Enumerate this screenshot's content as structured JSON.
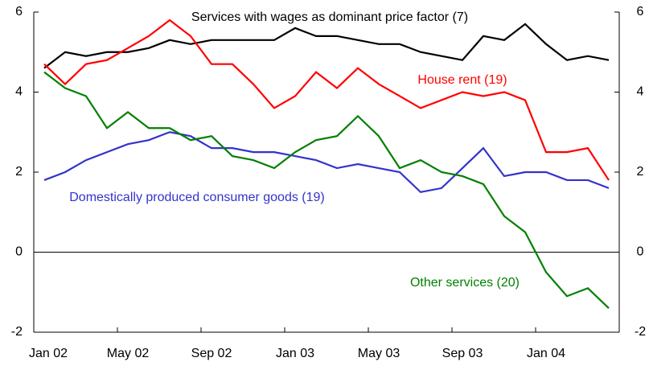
{
  "chart_data": {
    "type": "line",
    "categories": [
      "Jan 02",
      null,
      null,
      null,
      "May 02",
      null,
      null,
      null,
      "Sep 02",
      null,
      null,
      null,
      "Jan 03",
      null,
      null,
      null,
      "May 03",
      null,
      null,
      null,
      "Sep 03",
      null,
      null,
      null,
      "Jan 04",
      null,
      null,
      null
    ],
    "series": [
      {
        "name": "Services with wages as dominant price factor (7)",
        "color": "#000000",
        "values": [
          4.6,
          5.0,
          4.9,
          5.0,
          5.0,
          5.1,
          5.3,
          5.2,
          5.3,
          5.3,
          5.3,
          5.3,
          5.6,
          5.4,
          5.4,
          5.3,
          5.2,
          5.2,
          5.0,
          4.9,
          4.8,
          5.4,
          5.3,
          5.7,
          5.2,
          4.8,
          4.9,
          4.8
        ]
      },
      {
        "name": "House rent (19)",
        "color": "#ff0000",
        "values": [
          4.7,
          4.2,
          4.7,
          4.8,
          5.1,
          5.4,
          5.8,
          5.4,
          4.7,
          4.7,
          4.2,
          3.6,
          3.9,
          4.5,
          4.1,
          4.6,
          4.2,
          3.9,
          3.6,
          3.8,
          4.0,
          3.9,
          4.0,
          3.8,
          2.5,
          2.5,
          2.6,
          1.8
        ]
      },
      {
        "name": "Domestically produced consumer goods (19)",
        "color": "#3333cc",
        "values": [
          1.8,
          2.0,
          2.3,
          2.5,
          2.7,
          2.8,
          3.0,
          2.9,
          2.6,
          2.6,
          2.5,
          2.5,
          2.4,
          2.3,
          2.1,
          2.2,
          2.1,
          2.0,
          1.5,
          1.6,
          2.1,
          2.6,
          1.9,
          2.0,
          2.0,
          1.8,
          1.8,
          1.6
        ]
      },
      {
        "name": "Other services (20)",
        "color": "#008000",
        "values": [
          4.5,
          4.1,
          3.9,
          3.1,
          3.5,
          3.1,
          3.1,
          2.8,
          2.9,
          2.4,
          2.3,
          2.1,
          2.5,
          2.8,
          2.9,
          3.4,
          2.9,
          2.1,
          2.3,
          2.0,
          1.9,
          1.7,
          0.9,
          0.5,
          -0.5,
          -1.1,
          -0.9,
          -1.4
        ]
      }
    ],
    "ylim": [
      -2,
      6
    ],
    "yticks": [
      -2,
      0,
      2,
      4,
      6
    ]
  }
}
